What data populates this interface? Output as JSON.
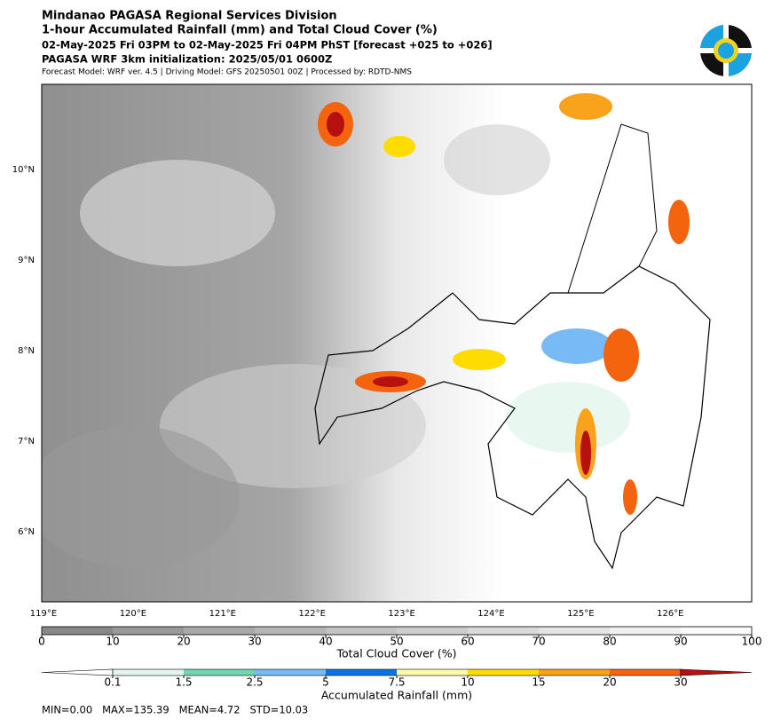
{
  "header": {
    "title": "Mindanao PAGASA Regional Services Division",
    "subtitle": "1-hour Accumulated Rainfall (mm) and Total Cloud Cover (%)",
    "period": "02-May-2025 Fri 03PM to 02-May-2025 Fri 04PM PhST [forecast +025 to +026]",
    "initialization": "PAGASA WRF 3km initialization: 2025/05/01 0600Z",
    "model_info": "Forecast Model: WRF ver. 4.5 | Driving Model: GFS 20250501 00Z | Processed by: RDTD-NMS"
  },
  "map": {
    "lat_labels": [
      "10°N",
      "9°N",
      "8°N",
      "7°N",
      "6°N"
    ],
    "lon_labels": [
      "119°E",
      "120°E",
      "121°E",
      "122°E",
      "123°E",
      "124°E",
      "125°E",
      "126°E"
    ]
  },
  "cloud_colorbar": {
    "label": "Total Cloud Cover (%)",
    "ticks": [
      0,
      10,
      20,
      30,
      40,
      50,
      60,
      70,
      80,
      90,
      100
    ],
    "colors": [
      "#888888",
      "#999999",
      "#a8a8a8",
      "#b5b5b5",
      "#c2c2c2",
      "#cdcdcd",
      "#d9d9d9",
      "#e4e4e4",
      "#f0f0f0",
      "#fafafa"
    ]
  },
  "rain_colorbar": {
    "label": "Accumulated Rainfall (mm)",
    "ticks": [
      0.1,
      1.5,
      2.5,
      5,
      7.5,
      10,
      15,
      20,
      30
    ],
    "colors": [
      "#ffffff",
      "#e2f6ee",
      "#70d6b0",
      "#78baf3",
      "#0a74e0",
      "#fff9a8",
      "#ffdc00",
      "#f9a21b",
      "#f4640f",
      "#b71010"
    ]
  },
  "stats": "MIN=0.00   MAX=135.39   MEAN=4.72   STD=10.03"
}
